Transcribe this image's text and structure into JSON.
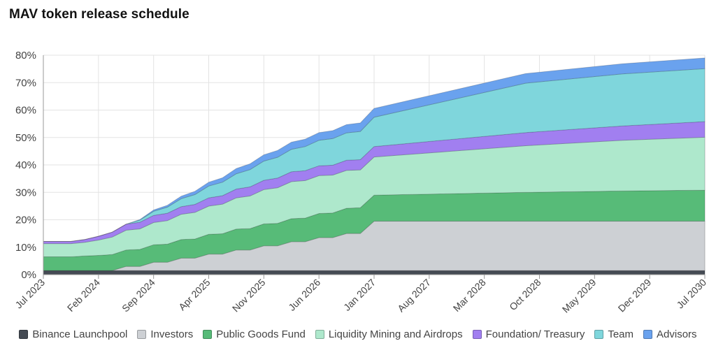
{
  "title": "MAV token release schedule",
  "chart_data": {
    "type": "area",
    "stacked": true,
    "title": "MAV token release schedule",
    "xlabel": "",
    "ylabel": "",
    "ylim": [
      0,
      80
    ],
    "y_ticks": [
      "0%",
      "10%",
      "20%",
      "30%",
      "40%",
      "50%",
      "60%",
      "70%",
      "80%"
    ],
    "x_tick_labels": [
      "Jul 2023",
      "Feb 2024",
      "Sep 2024",
      "Apr 2025",
      "Nov 2025",
      "Jun 2026",
      "Jan 2027",
      "Aug 2027",
      "Mar 2028",
      "Oct 2028",
      "May 2029",
      "Dec 2029",
      "Jul 2030"
    ],
    "x_months": [
      0,
      4,
      6,
      8,
      10,
      12,
      14,
      16,
      18,
      20,
      22,
      24,
      26,
      28,
      30,
      32,
      34,
      36,
      38,
      40,
      42,
      44,
      46,
      48,
      70,
      84,
      96
    ],
    "grid": true,
    "legend_position": "bottom",
    "series": [
      {
        "name": "Binance Launchpool",
        "color": "#454b54",
        "values": [
          1.5,
          1.5,
          1.5,
          1.5,
          1.5,
          1.5,
          1.5,
          1.5,
          1.5,
          1.5,
          1.5,
          1.5,
          1.5,
          1.5,
          1.5,
          1.5,
          1.5,
          1.5,
          1.5,
          1.5,
          1.5,
          1.5,
          1.5,
          1.5,
          1.5,
          1.5,
          1.5
        ]
      },
      {
        "name": "Investors",
        "color": "#cdd0d4",
        "values": [
          0,
          0,
          0,
          0,
          0,
          1.5,
          1.5,
          3,
          3,
          4.5,
          4.5,
          6,
          6,
          7.5,
          7.5,
          9,
          9,
          10.5,
          10.5,
          12,
          12,
          13.5,
          13.5,
          18,
          18,
          18,
          18
        ]
      },
      {
        "name": "Public Goods Fund",
        "color": "#57bb78",
        "values": [
          5,
          5,
          5.3,
          5.5,
          5.8,
          6,
          6.2,
          6.4,
          6.6,
          6.8,
          7,
          7.2,
          7.4,
          7.6,
          7.8,
          8,
          8.2,
          8.4,
          8.6,
          8.8,
          9,
          9.2,
          9.4,
          9.5,
          10.5,
          11,
          11.3
        ]
      },
      {
        "name": "Liquidity Mining and Airdrops",
        "color": "#aee8cc",
        "values": [
          4.8,
          4.8,
          5,
          5.6,
          6.4,
          7.2,
          7.5,
          8.1,
          8.6,
          9.2,
          9.7,
          10.3,
          10.8,
          11.4,
          11.9,
          12.5,
          13,
          13.5,
          13.7,
          13.8,
          13.8,
          13.8,
          13.8,
          13.9,
          17,
          18.5,
          19.3
        ]
      },
      {
        "name": "Foundation/ Treasury",
        "color": "#a17ff0",
        "values": [
          0.8,
          0.8,
          1,
          1.4,
          1.8,
          2.2,
          2.4,
          2.6,
          2.7,
          2.8,
          2.9,
          3,
          3.1,
          3.2,
          3.3,
          3.4,
          3.5,
          3.6,
          3.6,
          3.6,
          3.6,
          3.7,
          3.7,
          3.8,
          4.8,
          5.2,
          5.7
        ]
      },
      {
        "name": "Team",
        "color": "#7fd6dc",
        "values": [
          0,
          0,
          0,
          0,
          0,
          0,
          0.8,
          1.5,
          2.2,
          2.9,
          3.6,
          4.3,
          4.9,
          5.6,
          6.3,
          7,
          7.6,
          8.2,
          8.8,
          9.3,
          9.7,
          10,
          10.3,
          10.7,
          18,
          19,
          19.3
        ]
      },
      {
        "name": "Advisors",
        "color": "#6aa2ee",
        "values": [
          0,
          0,
          0,
          0,
          0,
          0,
          0.2,
          0.5,
          0.7,
          0.9,
          1.2,
          1.4,
          1.6,
          1.9,
          2.1,
          2.3,
          2.5,
          2.6,
          2.7,
          2.8,
          2.9,
          3,
          3.1,
          3.2,
          3.5,
          3.7,
          3.9
        ]
      }
    ]
  }
}
